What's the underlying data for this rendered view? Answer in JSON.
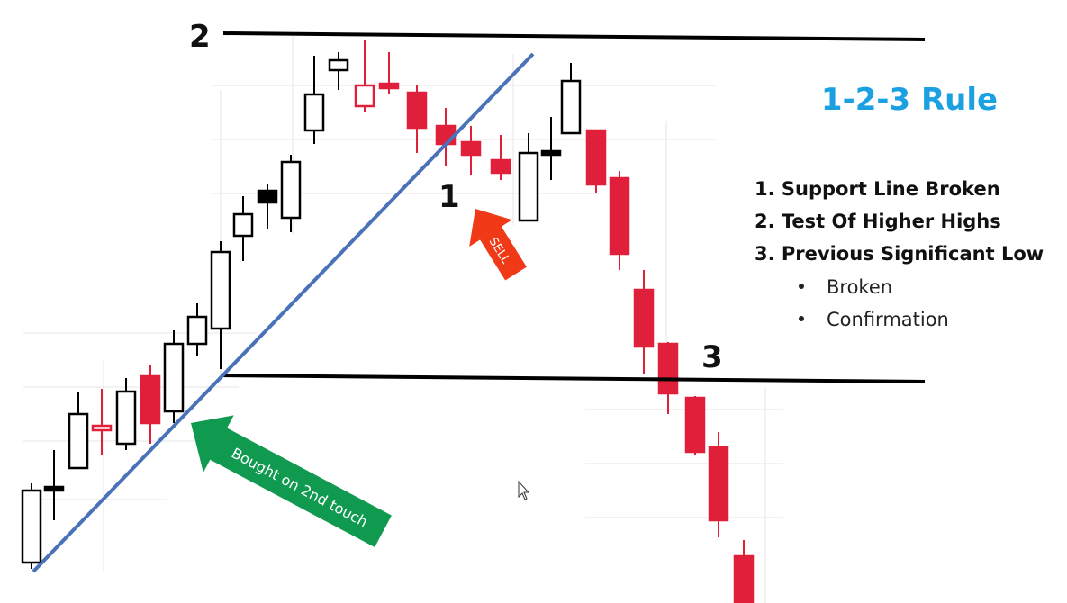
{
  "title": "1-2-3 Rule",
  "points": {
    "one": "1",
    "two": "2",
    "three": "3"
  },
  "arrows": {
    "buy": "Bought on 2nd touch",
    "sell": "SELL"
  },
  "rules": [
    "1. Support Line Broken",
    "2. Test Of Higher Highs",
    "3. Previous Significant Low"
  ],
  "sub_points": [
    "Broken",
    "Confirmation"
  ]
}
